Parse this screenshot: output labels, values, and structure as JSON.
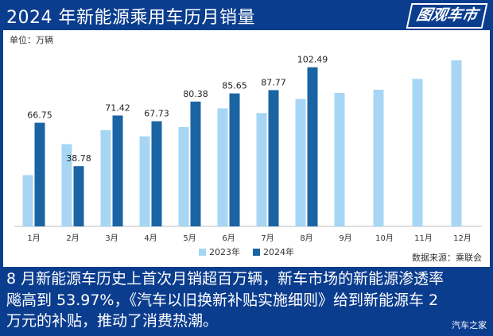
{
  "header": {
    "title": "2024 年新能源乘用车历月销量",
    "brand": "图观车市"
  },
  "unit_label": "单位：万辆",
  "source_label": "数据来源：乘联会",
  "caption": "8 月新能源车历史上首次月销超百万辆，新车市场的新能源渗透率飚高到 53.97%，《汽车以旧换新补贴实施细则》给到新能源车 2 万元的补贴，推动了消费热潮。",
  "watermark": "汽车之家",
  "colors": {
    "background": "#0b3d8e",
    "series_2023": "#a6d6f4",
    "series_2024": "#1b64a4"
  },
  "chart_data": {
    "type": "bar",
    "title": "2024 年新能源乘用车历月销量",
    "ylabel": "万辆",
    "ylim": [
      0,
      110
    ],
    "grid": false,
    "legend": "bottom-center",
    "categories": [
      "1月",
      "2月",
      "3月",
      "4月",
      "5月",
      "6月",
      "7月",
      "8月",
      "9月",
      "10月",
      "11月",
      "12月"
    ],
    "series": [
      {
        "name": "2023年",
        "values": [
          33,
          53,
          62,
          58,
          64,
          76,
          73,
          82,
          86,
          88,
          95,
          107
        ],
        "labels_shown": false
      },
      {
        "name": "2024年",
        "values": [
          66.75,
          38.78,
          71.42,
          67.73,
          80.38,
          85.65,
          87.77,
          102.49,
          null,
          null,
          null,
          null
        ],
        "labels_shown": true
      }
    ]
  }
}
